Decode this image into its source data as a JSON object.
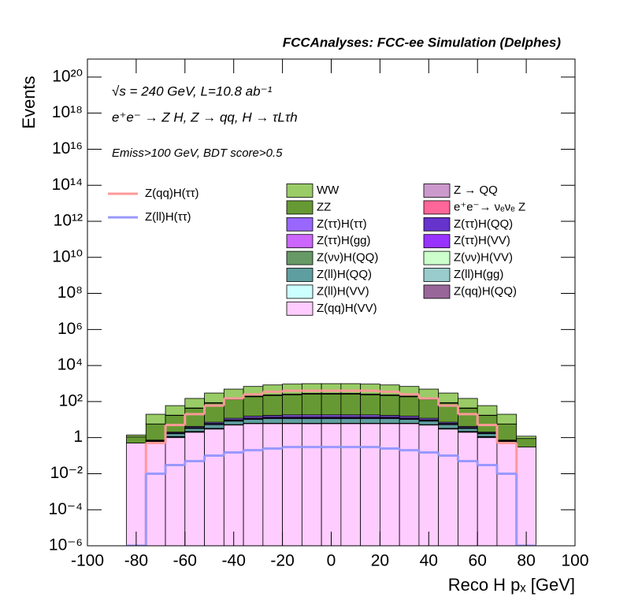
{
  "chart_data": {
    "type": "stacked-histogram",
    "title": "FCCAnalyses: FCC-ee Simulation (Delphes)",
    "annotations": [
      "√s = 240 GeV, L=10.8 ab⁻¹",
      "e⁺e⁻ → Z H, Z → qq, H → τLτh",
      "Emiss>100 GeV, BDT score>0.5"
    ],
    "xlabel": "Reco H pₓ [GeV]",
    "ylabel": "Events",
    "log_y": true,
    "xlim": [
      -100,
      100
    ],
    "ylim": [
      1e-06,
      1e+21
    ],
    "xticks": [
      -100,
      -80,
      -60,
      -40,
      -20,
      0,
      20,
      40,
      60,
      80,
      100
    ],
    "yticks": [
      {
        "value": 1e-06,
        "label": "10⁻⁶"
      },
      {
        "value": 0.0001,
        "label": "10⁻⁴"
      },
      {
        "value": 0.01,
        "label": "10⁻²"
      },
      1,
      {
        "value": 100,
        "label": "10²"
      },
      {
        "value": 10000.0,
        "label": "10⁴"
      },
      {
        "value": 1000000.0,
        "label": "10⁶"
      },
      {
        "value": 100000000.0,
        "label": "10⁸"
      },
      {
        "value": 10000000000.0,
        "label": "10¹⁰"
      },
      {
        "value": 1000000000000.0,
        "label": "10¹²"
      },
      {
        "value": 100000000000000.0,
        "label": "10¹⁴"
      },
      {
        "value": 1e+16,
        "label": "10¹⁶"
      },
      {
        "value": 1e+18,
        "label": "10¹⁸"
      },
      {
        "value": 1e+20,
        "label": "10²⁰"
      }
    ],
    "bins": [
      -84,
      -76,
      -68,
      -60,
      -52,
      -44,
      -36,
      -28,
      -20,
      -12,
      -4,
      4,
      12,
      20,
      28,
      36,
      44,
      52,
      60,
      68,
      76,
      84
    ],
    "series": [
      {
        "name": "WW",
        "color": "#99cc66",
        "values": [
          0.3,
          14,
          42,
          105,
          210,
          350,
          490,
          600,
          670,
          700,
          700,
          700,
          670,
          600,
          490,
          350,
          210,
          105,
          42,
          14,
          0.3
        ]
      },
      {
        "name": "Z → QQ",
        "color": "#cc99cc",
        "values": [
          0,
          0,
          0.5,
          2,
          5,
          10,
          15,
          20,
          25,
          30,
          30,
          30,
          25,
          20,
          15,
          10,
          5,
          2,
          0.5,
          0,
          0
        ]
      },
      {
        "name": "ZZ",
        "color": "#669933",
        "values": [
          0.6,
          5,
          15,
          38,
          75,
          120,
          170,
          200,
          220,
          240,
          240,
          240,
          220,
          200,
          170,
          120,
          75,
          38,
          15,
          5,
          0.6
        ]
      },
      {
        "name": "e⁺e⁻→ νₑνₑ Z",
        "color": "#ff6699",
        "values": [
          0,
          0,
          0,
          0,
          0,
          0,
          0,
          0.02,
          0,
          0,
          0,
          0.02,
          0,
          0,
          0,
          0.02,
          0,
          0,
          0,
          0,
          0
        ]
      },
      {
        "name": "Z(ττ)H(ττ)",
        "color": "#9966ff",
        "values": [
          0,
          0.05,
          0.2,
          0.5,
          1,
          2,
          3,
          3,
          4,
          4,
          4,
          4,
          4,
          3,
          3,
          2,
          1,
          0.5,
          0.2,
          0.05,
          0
        ]
      },
      {
        "name": "Z(ττ)H(QQ)",
        "color": "#6633cc",
        "values": [
          0,
          0.02,
          0.1,
          0.3,
          0.6,
          1,
          1.5,
          2,
          2,
          2,
          2,
          2,
          2,
          2,
          1.5,
          1,
          0.6,
          0.3,
          0.1,
          0.02,
          0
        ]
      },
      {
        "name": "Z(ττ)H(gg)",
        "color": "#cc66ff",
        "values": [
          0,
          0.01,
          0.05,
          0.1,
          0.2,
          0.4,
          0.5,
          0.6,
          0.6,
          0.7,
          0.7,
          0.7,
          0.6,
          0.6,
          0.5,
          0.4,
          0.2,
          0.1,
          0.05,
          0.01,
          0
        ]
      },
      {
        "name": "Z(ττ)H(VV)",
        "color": "#9933ff",
        "values": [
          0,
          0,
          0.02,
          0.05,
          0.1,
          0.2,
          0.3,
          0.3,
          0.3,
          0.3,
          0.3,
          0.3,
          0.3,
          0.3,
          0.3,
          0.2,
          0.1,
          0.05,
          0.02,
          0,
          0
        ]
      },
      {
        "name": "Z(νν)H(QQ)",
        "color": "#669966",
        "values": [
          0,
          0,
          0,
          0,
          0,
          0,
          0,
          0,
          0.02,
          0,
          0.02,
          0,
          0,
          0,
          0,
          0,
          0,
          0,
          0,
          0,
          0
        ]
      },
      {
        "name": "Z(νν)H(VV)",
        "color": "#ccffcc",
        "values": [
          0,
          0,
          0,
          0,
          0,
          0,
          0,
          0,
          0,
          0,
          0,
          0,
          0,
          0,
          0,
          0,
          0.03,
          0,
          0,
          0,
          0
        ]
      },
      {
        "name": "Z(ll)H(QQ)",
        "color": "#5f9ea0",
        "values": [
          0,
          0,
          0.5,
          1,
          2,
          3,
          4,
          5,
          5,
          5,
          5,
          5,
          5,
          5,
          4,
          3,
          2,
          1,
          0.5,
          0,
          0
        ]
      },
      {
        "name": "Z(ll)H(gg)",
        "color": "#99cccc",
        "values": [
          0,
          0.05,
          0.05,
          0.05,
          0.06,
          0.06,
          0.06,
          0.06,
          0.06,
          0.06,
          0.06,
          0.06,
          0.06,
          0.06,
          0.06,
          0.06,
          0.06,
          0.05,
          0.05,
          0.05,
          0
        ]
      },
      {
        "name": "Z(ll)H(VV)",
        "color": "#ccffff",
        "values": [
          0,
          0.1,
          0.1,
          0.15,
          0.2,
          0.2,
          0.2,
          0.2,
          0.2,
          0.2,
          0.2,
          0.2,
          0.2,
          0.2,
          0.2,
          0.2,
          0.2,
          0.15,
          0.1,
          0.1,
          0
        ]
      },
      {
        "name": "Z(qq)H(QQ)",
        "color": "#996699",
        "values": [
          0,
          0,
          0,
          0,
          0,
          0,
          0,
          0,
          0,
          0.0002,
          0,
          0,
          0,
          0,
          0,
          0,
          0,
          0,
          0,
          0,
          0
        ]
      },
      {
        "name": "Z(qq)H(VV)",
        "color": "#ffccff",
        "values": [
          0.5,
          0.5,
          1,
          2,
          3,
          5,
          6,
          6,
          6,
          6,
          6,
          6,
          6,
          6,
          6,
          5,
          3,
          2,
          1,
          0.5,
          0.3
        ]
      }
    ],
    "signals": [
      {
        "name": "Z(qq)H(ττ)",
        "color": "#ff9999",
        "values": [
          0,
          0.5,
          5,
          20,
          60,
          150,
          250,
          350,
          400,
          400,
          400,
          400,
          400,
          350,
          250,
          150,
          60,
          20,
          5,
          0.5,
          0
        ]
      },
      {
        "name": "Z(ll)H(ττ)",
        "color": "#9999ff",
        "values": [
          0,
          0.01,
          0.03,
          0.05,
          0.1,
          0.15,
          0.2,
          0.25,
          0.3,
          0.3,
          0.3,
          0.3,
          0.3,
          0.25,
          0.2,
          0.15,
          0.1,
          0.05,
          0.03,
          0.01,
          0
        ]
      }
    ]
  }
}
